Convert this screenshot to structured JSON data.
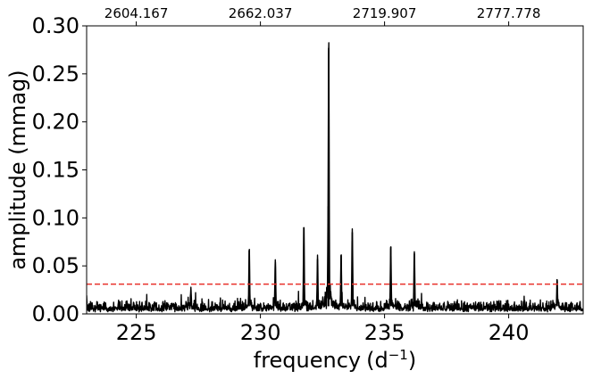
{
  "chart_data": {
    "type": "line",
    "xlabel": "frequency",
    "xlabel_unit_base": "d",
    "xlabel_unit_exp": "−1",
    "ylabel": "amplitude (mmag)",
    "xlim": [
      223,
      243
    ],
    "ylim": [
      0,
      0.3
    ],
    "x_ticks": [
      225,
      230,
      235,
      240
    ],
    "y_ticks": [
      0.0,
      0.05,
      0.1,
      0.15,
      0.2,
      0.25,
      0.3
    ],
    "y_tick_labels": [
      "0.00",
      "0.05",
      "0.10",
      "0.15",
      "0.20",
      "0.25",
      "0.30"
    ],
    "top_axis_ticks": [
      {
        "x": 225,
        "label": "2604.167"
      },
      {
        "x": 230,
        "label": "2662.037"
      },
      {
        "x": 235,
        "label": "2719.907"
      },
      {
        "x": 240,
        "label": "2777.778"
      }
    ],
    "grid": false,
    "threshold": {
      "y": 0.031,
      "color": "#e8312b",
      "style": "dashed"
    },
    "line_color": "#000000",
    "noise_level": 0.008,
    "peaks": [
      {
        "x": 227.2,
        "y": 0.025
      },
      {
        "x": 229.55,
        "y": 0.066
      },
      {
        "x": 230.6,
        "y": 0.054
      },
      {
        "x": 231.75,
        "y": 0.09
      },
      {
        "x": 232.3,
        "y": 0.057
      },
      {
        "x": 232.75,
        "y": 0.277
      },
      {
        "x": 232.73,
        "y": 0.112
      },
      {
        "x": 233.25,
        "y": 0.061
      },
      {
        "x": 233.7,
        "y": 0.085
      },
      {
        "x": 235.25,
        "y": 0.07
      },
      {
        "x": 236.2,
        "y": 0.063
      },
      {
        "x": 241.95,
        "y": 0.034
      }
    ]
  }
}
